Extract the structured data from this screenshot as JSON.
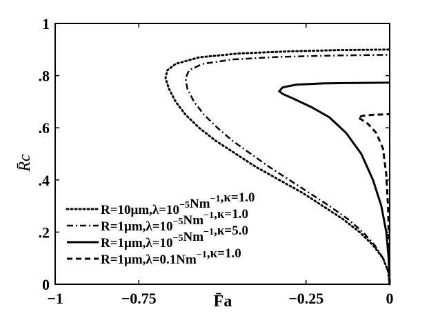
{
  "chart_data": {
    "type": "line",
    "title": "",
    "xlabel": "F̄a",
    "ylabel": "R̄c",
    "xlim": [
      -1,
      0
    ],
    "ylim": [
      0,
      1
    ],
    "xticks": [
      -1,
      -0.75,
      -0.25,
      0
    ],
    "xtick_labels": [
      "−1",
      "−0.75",
      "−0.25",
      "0"
    ],
    "yticks": [
      0,
      0.2,
      0.4,
      0.6,
      0.8,
      1
    ],
    "ytick_labels": [
      "0",
      ".2",
      ".4",
      ".6",
      ".8",
      "1"
    ],
    "grid": false,
    "legend_position": "lower-left",
    "series": [
      {
        "name": "R=10μm,λ=10−5Nm−1,κ=1.0",
        "style": "dotted",
        "color": "#000000",
        "points": [
          [
            0,
            0
          ],
          [
            -0.005,
            0.05
          ],
          [
            -0.02,
            0.1
          ],
          [
            -0.05,
            0.15
          ],
          [
            -0.09,
            0.2
          ],
          [
            -0.14,
            0.25
          ],
          [
            -0.2,
            0.3
          ],
          [
            -0.26,
            0.35
          ],
          [
            -0.33,
            0.4
          ],
          [
            -0.4,
            0.45
          ],
          [
            -0.46,
            0.5
          ],
          [
            -0.52,
            0.55
          ],
          [
            -0.57,
            0.6
          ],
          [
            -0.61,
            0.65
          ],
          [
            -0.64,
            0.7
          ],
          [
            -0.66,
            0.75
          ],
          [
            -0.67,
            0.79
          ],
          [
            -0.665,
            0.82
          ],
          [
            -0.64,
            0.845
          ],
          [
            -0.57,
            0.87
          ],
          [
            -0.45,
            0.885
          ],
          [
            -0.3,
            0.893
          ],
          [
            -0.15,
            0.898
          ],
          [
            0,
            0.9
          ]
        ]
      },
      {
        "name": "R=1μm,λ=10−5Nm−1,κ=1.0",
        "style": "dashdot",
        "color": "#000000",
        "points": [
          [
            0,
            0
          ],
          [
            -0.005,
            0.05
          ],
          [
            -0.02,
            0.1
          ],
          [
            -0.045,
            0.15
          ],
          [
            -0.08,
            0.2
          ],
          [
            -0.125,
            0.25
          ],
          [
            -0.18,
            0.3
          ],
          [
            -0.24,
            0.35
          ],
          [
            -0.3,
            0.4
          ],
          [
            -0.36,
            0.45
          ],
          [
            -0.415,
            0.5
          ],
          [
            -0.47,
            0.55
          ],
          [
            -0.515,
            0.6
          ],
          [
            -0.555,
            0.65
          ],
          [
            -0.585,
            0.7
          ],
          [
            -0.605,
            0.75
          ],
          [
            -0.61,
            0.79
          ],
          [
            -0.6,
            0.82
          ],
          [
            -0.56,
            0.845
          ],
          [
            -0.47,
            0.862
          ],
          [
            -0.33,
            0.872
          ],
          [
            -0.17,
            0.877
          ],
          [
            0,
            0.88
          ]
        ]
      },
      {
        "name": "R=1μm,λ=10−5Nm−1,κ=5.0",
        "style": "solid",
        "color": "#000000",
        "points": [
          [
            0,
            0
          ],
          [
            -0.003,
            0.1
          ],
          [
            -0.01,
            0.2
          ],
          [
            -0.025,
            0.3
          ],
          [
            -0.05,
            0.4
          ],
          [
            -0.085,
            0.5
          ],
          [
            -0.13,
            0.58
          ],
          [
            -0.18,
            0.64
          ],
          [
            -0.235,
            0.68
          ],
          [
            -0.285,
            0.71
          ],
          [
            -0.32,
            0.73
          ],
          [
            -0.33,
            0.74
          ],
          [
            -0.32,
            0.755
          ],
          [
            -0.28,
            0.765
          ],
          [
            -0.2,
            0.77
          ],
          [
            -0.1,
            0.772
          ],
          [
            0,
            0.773
          ]
        ]
      },
      {
        "name": "R=1μm,λ=0.1Nm−1,κ=1.0",
        "style": "dashed",
        "color": "#000000",
        "points": [
          [
            0,
            0
          ],
          [
            -0.002,
            0.15
          ],
          [
            -0.005,
            0.3
          ],
          [
            -0.01,
            0.42
          ],
          [
            -0.02,
            0.52
          ],
          [
            -0.04,
            0.58
          ],
          [
            -0.065,
            0.615
          ],
          [
            -0.085,
            0.632
          ],
          [
            -0.095,
            0.64
          ],
          [
            -0.08,
            0.646
          ],
          [
            -0.05,
            0.65
          ],
          [
            -0.02,
            0.651
          ],
          [
            0,
            0.652
          ]
        ]
      }
    ]
  }
}
